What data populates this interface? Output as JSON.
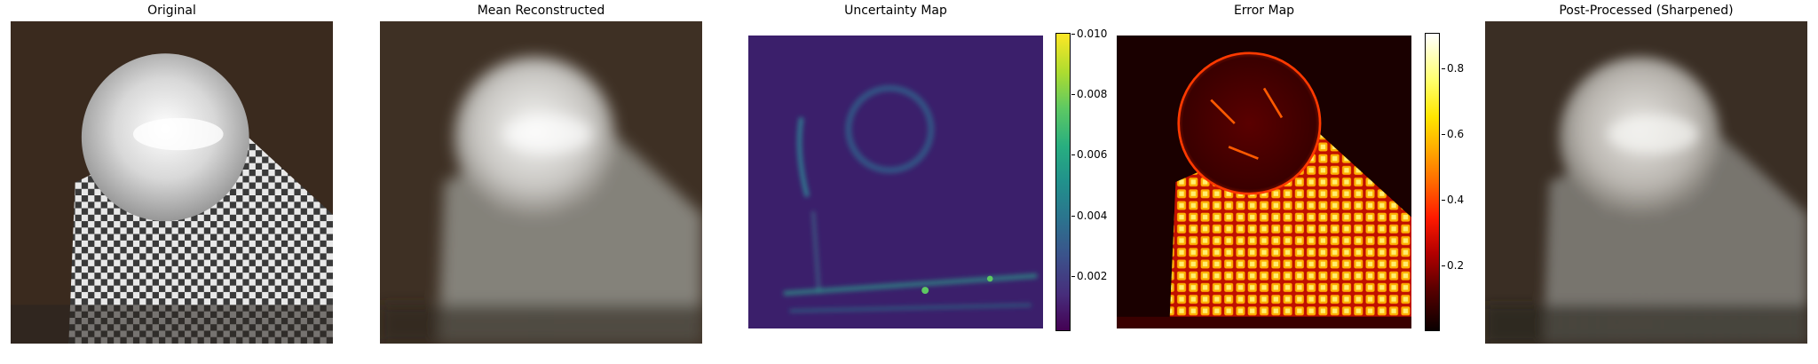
{
  "panels": [
    {
      "title": "Original"
    },
    {
      "title": "Mean Reconstructed"
    },
    {
      "title": "Uncertainty Map"
    },
    {
      "title": "Error Map"
    },
    {
      "title": "Post-Processed (Sharpened)"
    }
  ],
  "uncertainty_colorbar": {
    "colormap": "viridis",
    "ticks": [
      "0.010",
      "0.008",
      "0.006",
      "0.004",
      "0.002"
    ],
    "tick_values": [
      0.01,
      0.008,
      0.006,
      0.004,
      0.002
    ],
    "range": [
      0.0002,
      0.01
    ]
  },
  "error_colorbar": {
    "colormap": "hot",
    "ticks": [
      "0.8",
      "0.6",
      "0.4",
      "0.2"
    ],
    "tick_values": [
      0.8,
      0.6,
      0.4,
      0.2
    ],
    "range": [
      0.0,
      0.91
    ]
  },
  "colors": {
    "background": "#ffffff",
    "scene_background": "#3a2a1e",
    "uncertainty_base": "#3b1f6b",
    "error_base": "#1a0000"
  }
}
